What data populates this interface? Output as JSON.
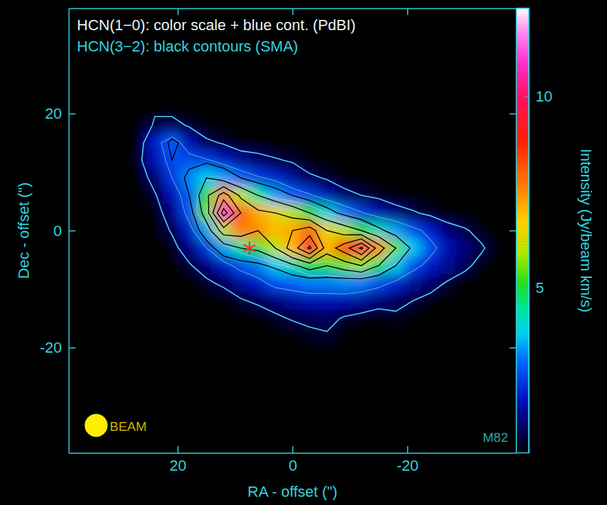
{
  "chart_data": {
    "type": "heatmap",
    "annotations": [
      "HCN(1−0): color scale + blue cont. (PdBI)",
      "HCN(3−2): black contours (SMA)"
    ],
    "label": "M82",
    "x_label": "RA - offset (\")",
    "y_label": "Dec - offset (\")",
    "xlim": [
      39,
      -39
    ],
    "ylim": [
      -38,
      38
    ],
    "xticks": [
      20,
      0,
      -20
    ],
    "yticks": [
      -20,
      0,
      20
    ],
    "colorbar": {
      "label": "Intensity (Jy/beam km/s)",
      "range": [
        0.7,
        12.3
      ],
      "ticks": [
        5,
        10
      ]
    },
    "x": [
      30,
      27,
      24,
      21,
      18,
      15,
      12,
      9,
      6,
      3,
      0,
      -3,
      -6,
      -9,
      -12,
      -15,
      -18,
      -21,
      -24,
      -27,
      -30,
      -33,
      -36
    ],
    "y": [
      18,
      15,
      12,
      9,
      6,
      3,
      0,
      -3,
      -6,
      -9,
      -12,
      -15,
      -18,
      -21
    ],
    "values": [
      [
        0.5,
        0.5,
        1.2,
        1.4,
        1.0,
        0.5,
        0.5,
        0.5,
        0.5,
        0.5,
        0.5,
        0.5,
        0.5,
        0.5,
        0.5,
        0.5,
        0.5,
        0.5,
        0.5,
        0.5,
        0.5,
        0.5,
        0.5
      ],
      [
        0.5,
        0.5,
        2.2,
        3.0,
        2.0,
        1.3,
        1.0,
        0.5,
        0.5,
        0.5,
        0.5,
        0.5,
        0.5,
        0.5,
        0.5,
        0.5,
        0.5,
        0.5,
        0.5,
        0.5,
        0.5,
        0.5,
        0.5
      ],
      [
        0.5,
        0.8,
        2.0,
        2.8,
        2.8,
        2.6,
        2.2,
        1.8,
        1.5,
        1.2,
        1.0,
        0.5,
        0.5,
        0.5,
        0.5,
        0.5,
        0.5,
        0.5,
        0.5,
        0.5,
        0.5,
        0.5,
        0.5
      ],
      [
        0.5,
        0.5,
        1.5,
        2.5,
        3.3,
        3.8,
        3.5,
        3.0,
        2.6,
        2.3,
        1.8,
        1.3,
        1.0,
        0.5,
        0.5,
        0.5,
        0.5,
        0.5,
        0.5,
        0.5,
        0.5,
        0.5,
        0.5
      ],
      [
        0.5,
        0.5,
        1.0,
        2.0,
        3.0,
        5.0,
        7.5,
        6.0,
        4.5,
        3.5,
        3.0,
        2.6,
        2.0,
        1.5,
        1.1,
        0.9,
        0.5,
        0.5,
        0.5,
        0.5,
        0.5,
        0.5,
        0.5
      ],
      [
        0.5,
        0.5,
        0.7,
        1.6,
        2.8,
        5.5,
        10.8,
        8.0,
        7.2,
        6.5,
        6.0,
        5.0,
        4.0,
        3.2,
        2.6,
        2.0,
        1.6,
        1.2,
        0.9,
        0.5,
        0.5,
        0.5,
        0.5
      ],
      [
        0.5,
        0.5,
        0.5,
        1.2,
        2.2,
        3.5,
        6.0,
        7.8,
        7.5,
        7.0,
        7.2,
        8.0,
        6.5,
        6.0,
        5.0,
        4.2,
        3.5,
        2.8,
        2.2,
        1.6,
        1.2,
        0.8,
        0.5
      ],
      [
        0.5,
        0.5,
        0.5,
        0.8,
        1.6,
        2.5,
        3.5,
        4.5,
        5.0,
        6.0,
        7.0,
        9.5,
        7.0,
        8.5,
        9.8,
        7.5,
        5.5,
        3.8,
        2.8,
        2.0,
        1.6,
        1.2,
        0.6
      ],
      [
        0.5,
        0.5,
        0.5,
        0.5,
        1.0,
        1.6,
        2.2,
        2.8,
        3.2,
        3.8,
        4.2,
        5.0,
        5.0,
        5.5,
        5.8,
        4.8,
        3.8,
        2.8,
        2.2,
        1.8,
        1.3,
        0.8,
        0.5
      ],
      [
        0.5,
        0.5,
        0.5,
        0.5,
        0.5,
        0.9,
        1.3,
        1.8,
        2.2,
        2.8,
        3.0,
        3.2,
        3.2,
        3.3,
        3.2,
        2.8,
        2.3,
        1.8,
        1.5,
        1.0,
        0.7,
        0.5,
        0.5
      ],
      [
        0.5,
        0.5,
        0.5,
        0.5,
        0.5,
        0.5,
        0.5,
        1.0,
        1.3,
        1.6,
        1.8,
        2.0,
        2.0,
        2.0,
        1.8,
        1.6,
        1.4,
        1.1,
        0.8,
        0.5,
        0.5,
        0.5,
        0.5
      ],
      [
        0.5,
        0.5,
        0.5,
        0.5,
        0.5,
        0.5,
        0.5,
        0.5,
        0.5,
        0.9,
        1.2,
        1.3,
        1.4,
        1.0,
        0.8,
        0.5,
        0.9,
        0.5,
        0.5,
        0.5,
        0.5,
        0.5,
        0.5
      ],
      [
        0.5,
        0.5,
        0.5,
        0.5,
        0.5,
        0.5,
        0.5,
        0.5,
        0.5,
        0.5,
        0.5,
        0.9,
        1.0,
        0.5,
        0.5,
        0.5,
        0.5,
        0.5,
        0.5,
        0.5,
        0.5,
        0.5,
        0.5
      ],
      [
        0.5,
        0.5,
        0.5,
        0.5,
        0.5,
        0.5,
        0.5,
        0.5,
        0.5,
        0.5,
        0.5,
        0.5,
        0.5,
        0.5,
        0.5,
        0.5,
        0.5,
        0.5,
        0.5,
        0.5,
        0.5,
        0.5,
        0.5
      ]
    ],
    "contour_levels": [
      1.1,
      2.5,
      4,
      5.5
    ],
    "overlay": {
      "color": "#000000",
      "x": [
        27,
        24,
        21,
        18,
        15,
        12,
        9,
        6,
        3,
        0,
        -3,
        -6,
        -9,
        -12,
        -15,
        -18,
        -21,
        -24
      ],
      "y": [
        18,
        15,
        12,
        9,
        6,
        3,
        0,
        -3,
        -6,
        -9,
        -12
      ],
      "values": [
        [
          0,
          0,
          0,
          0,
          0,
          0,
          0,
          0,
          0,
          0,
          0,
          0,
          0,
          0,
          0,
          0,
          0,
          0
        ],
        [
          0,
          0,
          1.3,
          0.5,
          0,
          0,
          0,
          0,
          0,
          0,
          0,
          0,
          0,
          0,
          0,
          0,
          0,
          0
        ],
        [
          0,
          0.3,
          1.0,
          0.8,
          0.8,
          0.6,
          0,
          0,
          0,
          0,
          0,
          0,
          0,
          0,
          0,
          0,
          0,
          0
        ],
        [
          0,
          0,
          0.5,
          1.2,
          2.0,
          1.5,
          1.0,
          0.6,
          0.3,
          0,
          0,
          0,
          0,
          0,
          0,
          0,
          0,
          0
        ],
        [
          0,
          0,
          0.2,
          1.0,
          2.8,
          4.5,
          2.8,
          2.0,
          1.5,
          1.0,
          0.6,
          0.3,
          0,
          0,
          0,
          0,
          0,
          0
        ],
        [
          0,
          0,
          0,
          0.6,
          2.5,
          6.5,
          4.0,
          3.2,
          3.0,
          2.6,
          2.0,
          1.3,
          0.8,
          0.4,
          0,
          0,
          0,
          0
        ],
        [
          0,
          0,
          0,
          0.3,
          1.5,
          3.5,
          3.5,
          3.0,
          3.2,
          4.0,
          4.5,
          3.0,
          2.5,
          2.0,
          1.2,
          0.6,
          0.2,
          0
        ],
        [
          0,
          0,
          0,
          0,
          0.6,
          1.5,
          2.0,
          2.2,
          3.0,
          4.5,
          6.2,
          3.5,
          4.5,
          6.2,
          3.5,
          2.0,
          0.8,
          0
        ],
        [
          0,
          0,
          0,
          0,
          0,
          0.4,
          0.6,
          0.8,
          1.2,
          1.8,
          2.5,
          2.0,
          2.5,
          3.0,
          2.0,
          1.0,
          0.4,
          0
        ],
        [
          0,
          0,
          0,
          0,
          0,
          0,
          0,
          0,
          0,
          0.3,
          0.4,
          0.5,
          0.4,
          0.3,
          0.2,
          0,
          0,
          0
        ],
        [
          0,
          0,
          0,
          0,
          0,
          0,
          0,
          0,
          0,
          0,
          0,
          0,
          0,
          0,
          0,
          0,
          0,
          0
        ]
      ],
      "contour_levels": [
        1,
        2,
        3,
        4,
        5,
        6
      ]
    },
    "points": {
      "x": [
        7.5
      ],
      "y": [
        -3
      ],
      "marker": "asterisk",
      "color": "#ff2a2a"
    },
    "beam": {
      "label": "BEAM",
      "diameter": 4
    }
  }
}
